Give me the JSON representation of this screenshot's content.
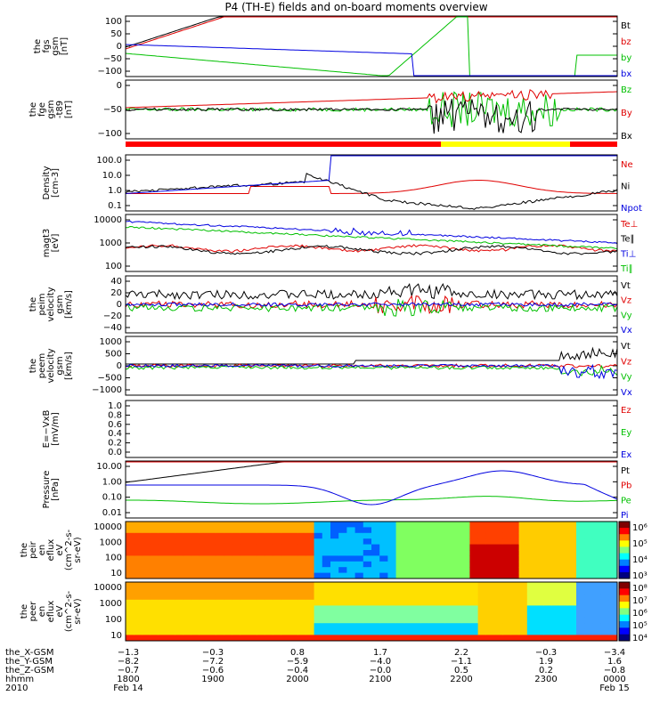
{
  "title": "P4 (TH-E) fields and on-board moments overview",
  "panels": [
    {
      "id": "fgs",
      "type": "line",
      "ylabel": [
        "the",
        "fgs",
        "gsm",
        "[nT]"
      ],
      "yticks": [
        "100",
        "50",
        "0",
        "−50",
        "−100"
      ],
      "ylim": [
        -100,
        100
      ],
      "legend": [
        {
          "text": "Bt",
          "color": "#000000"
        },
        {
          "text": "bz",
          "color": "#e00000"
        },
        {
          "text": "by",
          "color": "#00c000"
        },
        {
          "text": "bx",
          "color": "#0000e0"
        }
      ]
    },
    {
      "id": "fgs-tsg",
      "type": "line",
      "ylabel": [
        "the",
        "fge",
        "gsm",
        "-t89",
        "[nT]"
      ],
      "yticks": [
        "0",
        "−50",
        "−100"
      ],
      "ylim": [
        -130,
        70
      ],
      "legend": [
        {
          "text": "Bz",
          "color": "#00c000"
        },
        {
          "text": "By",
          "color": "#e00000"
        },
        {
          "text": "Bx",
          "color": "#000000"
        }
      ]
    },
    {
      "id": "density",
      "type": "line",
      "ylabel": [
        "Density",
        "[cm-3]"
      ],
      "yticks": [
        "100.0",
        "10.0",
        "1.0",
        "0.1"
      ],
      "ylim": [
        0.1,
        100
      ],
      "scale": "log",
      "legend": [
        {
          "text": "Ne",
          "color": "#e00000"
        },
        {
          "text": "Ni",
          "color": "#000000"
        },
        {
          "text": "Npot",
          "color": "#0000e0"
        }
      ]
    },
    {
      "id": "temp",
      "type": "line",
      "ylabel": [
        "magt3",
        "[eV]"
      ],
      "yticks": [
        "10000",
        "1000",
        "100"
      ],
      "ylim": [
        30,
        10000
      ],
      "scale": "log",
      "legend": [
        {
          "text": "Te⊥",
          "color": "#e00000"
        },
        {
          "text": "Te∥",
          "color": "#000000"
        },
        {
          "text": "Ti⊥",
          "color": "#0000e0"
        },
        {
          "text": "Ti∥",
          "color": "#00c000"
        }
      ]
    },
    {
      "id": "peim",
      "type": "line",
      "ylabel": [
        "the",
        "peim",
        "velocity",
        "gsm",
        "[km/s]"
      ],
      "yticks": [
        "40",
        "20",
        "0",
        "−20",
        "−40"
      ],
      "ylim": [
        -40,
        40
      ],
      "legend": [
        {
          "text": "Vt",
          "color": "#000000"
        },
        {
          "text": "Vz",
          "color": "#e00000"
        },
        {
          "text": "Vy",
          "color": "#00c000"
        },
        {
          "text": "Vx",
          "color": "#0000e0"
        }
      ]
    },
    {
      "id": "peem",
      "type": "line",
      "ylabel": [
        "the",
        "peem",
        "velocity",
        "gsm",
        "[km/s]"
      ],
      "yticks": [
        "1000",
        "500",
        "0",
        "−500",
        "−1000"
      ],
      "ylim": [
        -1000,
        1000
      ],
      "legend": [
        {
          "text": "Vt",
          "color": "#000000"
        },
        {
          "text": "Vz",
          "color": "#e00000"
        },
        {
          "text": "Vy",
          "color": "#00c000"
        },
        {
          "text": "Vx",
          "color": "#0000e0"
        }
      ]
    },
    {
      "id": "efield",
      "type": "line",
      "ylabel": [
        "E=−VxB",
        "[mV/m]"
      ],
      "yticks": [
        "1.0",
        "0.8",
        "0.6",
        "0.4",
        "0.2",
        "0.0"
      ],
      "ylim": [
        0,
        1
      ],
      "legend": [
        {
          "text": "Ez",
          "color": "#e00000"
        },
        {
          "text": "Ey",
          "color": "#00c000"
        },
        {
          "text": "Ex",
          "color": "#0000e0"
        }
      ]
    },
    {
      "id": "pressure",
      "type": "line",
      "ylabel": [
        "Pressure",
        "[nPa]"
      ],
      "yticks": [
        "10.00",
        "1.00",
        "0.10",
        "0.01"
      ],
      "ylim": [
        0.004,
        10
      ],
      "scale": "log",
      "legend": [
        {
          "text": "Pt",
          "color": "#000000"
        },
        {
          "text": "Pb",
          "color": "#e00000"
        },
        {
          "text": "Pe",
          "color": "#00c000"
        },
        {
          "text": "Pi",
          "color": "#0000e0"
        }
      ]
    },
    {
      "id": "peir",
      "type": "heatmap",
      "ylabel": [
        "the",
        "peir",
        "en",
        "eflux",
        "eV",
        "(cm^2-s-",
        "sr-eV)"
      ],
      "yticks": [
        "10000",
        "1000",
        "100",
        "10"
      ],
      "colorbar": [
        "10⁶",
        "10⁵",
        "10⁴",
        "10³"
      ]
    },
    {
      "id": "peer",
      "type": "heatmap",
      "ylabel": [
        "the",
        "peer",
        "en",
        "eflux",
        "eV",
        "(cm^2-s-",
        "sr-eV)"
      ],
      "yticks": [
        "10000",
        "1000",
        "100",
        "10"
      ],
      "colorbar": [
        "10⁸",
        "10⁷",
        "10⁶",
        "10⁵",
        "10⁴"
      ]
    }
  ],
  "xaxis": {
    "rows": [
      {
        "label": "the_X-GSM",
        "values": [
          "−1.3",
          "−0.3",
          "0.8",
          "1.7",
          "2.2",
          "−0.3",
          "−3.4"
        ]
      },
      {
        "label": "the_Y-GSM",
        "values": [
          "−8.2",
          "−7.2",
          "−5.9",
          "−4.0",
          "−1.1",
          "1.9",
          "1.6"
        ]
      },
      {
        "label": "the_Z-GSM",
        "values": [
          "−0.7",
          "−0.6",
          "−0.4",
          "−0.0",
          "0.5",
          "0.2",
          "−0.8"
        ]
      },
      {
        "label": "hhmm",
        "values": [
          "1800",
          "1900",
          "2000",
          "2100",
          "2200",
          "2300",
          "0000"
        ]
      },
      {
        "label": "2010",
        "values": [
          "Feb 14",
          "",
          "",
          "",
          "",
          "",
          "Feb 15"
        ]
      }
    ]
  },
  "chart_data": [
    {
      "type": "line",
      "panel": "fgs",
      "x_hours": [
        18,
        19,
        20,
        21,
        22,
        23,
        24
      ],
      "series": [
        {
          "name": "Bt",
          "values": [
            60,
            100,
            150,
            200,
            260,
            300,
            300
          ]
        },
        {
          "name": "bz",
          "values": [
            55,
            95,
            140,
            190,
            250,
            290,
            290
          ]
        },
        {
          "name": "by",
          "values": [
            -10,
            -30,
            -60,
            -100,
            0,
            -100,
            0
          ]
        },
        {
          "name": "bx",
          "values": [
            5,
            -5,
            -20,
            -80,
            -100,
            -100,
            -100
          ]
        }
      ]
    },
    {
      "type": "line",
      "panel": "density",
      "x_hours": [
        18,
        19,
        20,
        21,
        22,
        23,
        24
      ],
      "series": [
        {
          "name": "Ni",
          "values": [
            0.6,
            1.0,
            2.5,
            0.15,
            3,
            40,
            2
          ]
        },
        {
          "name": "Ne",
          "values": [
            0.5,
            0.9,
            2.0,
            1.0,
            1.5,
            4,
            0.3
          ]
        }
      ]
    },
    {
      "type": "line",
      "panel": "pressure",
      "x_hours": [
        18,
        19,
        20,
        21,
        22,
        23,
        24
      ],
      "series": [
        {
          "name": "Pt",
          "values": [
            1.0,
            2.0,
            4.0,
            10,
            10,
            10,
            10
          ]
        },
        {
          "name": "Pi",
          "values": [
            0.3,
            0.3,
            0.15,
            0.01,
            0.2,
            1.0,
            0.01
          ]
        },
        {
          "name": "Pe",
          "values": [
            0.03,
            0.03,
            0.03,
            0.02,
            0.05,
            0.2,
            0.03
          ]
        }
      ]
    }
  ]
}
